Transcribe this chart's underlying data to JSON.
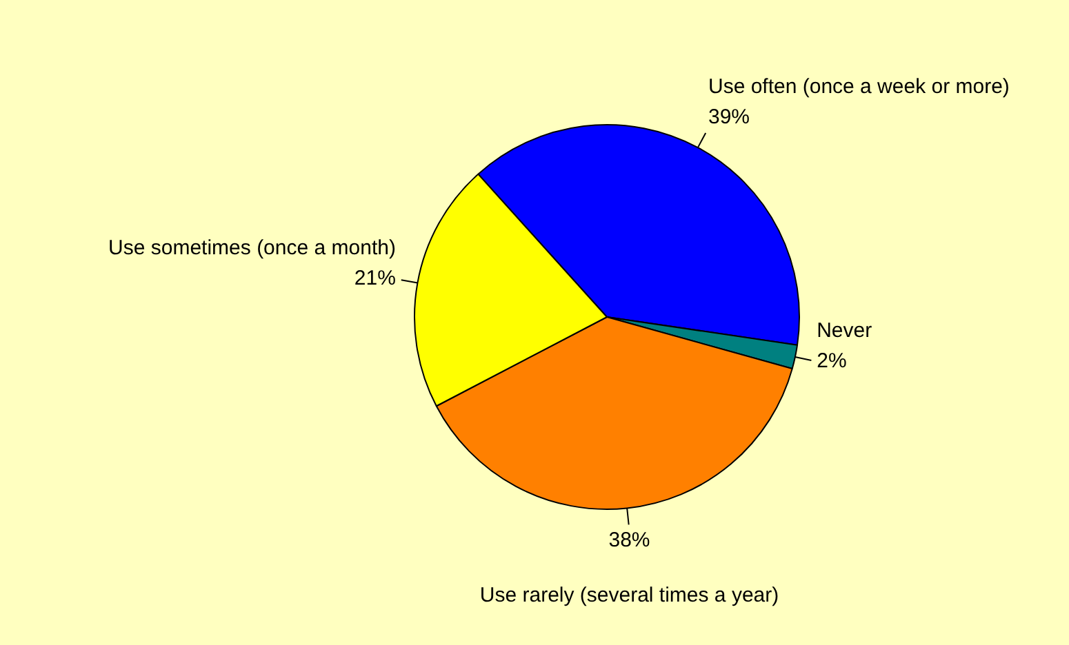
{
  "chart_data": {
    "type": "pie",
    "categories": [
      "Use often (once a week or more)",
      "Never",
      "Use rarely (several times a year)",
      "Use sometimes (once a month)"
    ],
    "values": [
      39,
      2,
      38,
      21
    ],
    "colors": [
      "#0000ff",
      "#008080",
      "#ff8000",
      "#ffff00"
    ],
    "value_labels": [
      "39%",
      "2%",
      "38%",
      "21%"
    ]
  }
}
